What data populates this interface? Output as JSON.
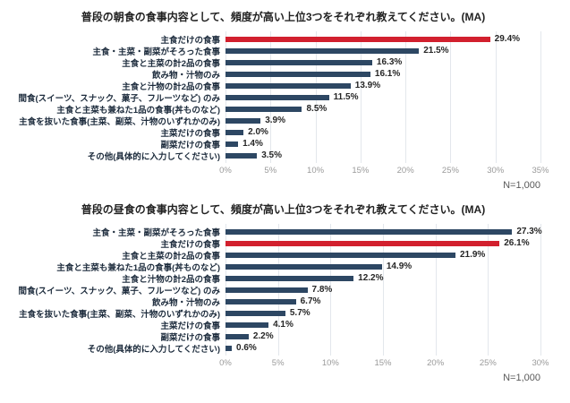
{
  "colors": {
    "bar_default": "#2d4763",
    "bar_highlight": "#d2202e",
    "gridline": "#e3e7ec",
    "value_text": "#262626",
    "label_text": "#1b2a3b",
    "tick_text": "#9a9a9a",
    "sample_text": "#595959"
  },
  "chart_data": [
    {
      "type": "bar",
      "orientation": "horizontal",
      "title": "普段の朝食の食事内容として、頻度が高い上位3つをそれぞれ教えてください。(MA)",
      "xlabel": "",
      "ylabel": "",
      "xlim": [
        0,
        35
      ],
      "grid": true,
      "sample_label": "N=1,000",
      "highlight_index": 0,
      "ticks": [
        {
          "label": "0%",
          "value": 0
        },
        {
          "label": "5%",
          "value": 5
        },
        {
          "label": "10%",
          "value": 10
        },
        {
          "label": "15%",
          "value": 15
        },
        {
          "label": "20%",
          "value": 20
        },
        {
          "label": "25%",
          "value": 25
        },
        {
          "label": "30%",
          "value": 30
        },
        {
          "label": "35%",
          "value": 35
        }
      ],
      "categories": [
        "主食だけの食事",
        "主食・主菜・副菜がそろった食事",
        "主食と主菜の計2品の食事",
        "飲み物・汁物のみ",
        "主食と汁物の計2品の食事",
        "間食(スイーツ、スナック、菓子、フルーツなど) のみ",
        "主食と主菜も兼ねた1品の食事(丼ものなど)",
        "主食を抜いた食事(主菜、副菜、汁物のいずれかのみ)",
        "主菜だけの食事",
        "副菜だけの食事",
        "その他(具体的に入力してください)"
      ],
      "values": [
        29.4,
        21.5,
        16.3,
        16.1,
        13.9,
        11.5,
        8.5,
        3.9,
        2.0,
        1.4,
        3.5
      ],
      "value_labels": [
        "29.4%",
        "21.5%",
        "16.3%",
        "16.1%",
        "13.9%",
        "11.5%",
        "8.5%",
        "3.9%",
        "2.0%",
        "1.4%",
        "3.5%"
      ]
    },
    {
      "type": "bar",
      "orientation": "horizontal",
      "title": "普段の昼食の食事内容として、頻度が高い上位3つをそれぞれ教えてください。(MA)",
      "xlabel": "",
      "ylabel": "",
      "xlim": [
        0,
        30
      ],
      "grid": true,
      "sample_label": "N=1,000",
      "highlight_index": 1,
      "ticks": [
        {
          "label": "0%",
          "value": 0
        },
        {
          "label": "5%",
          "value": 5
        },
        {
          "label": "10%",
          "value": 10
        },
        {
          "label": "15%",
          "value": 15
        },
        {
          "label": "20%",
          "value": 20
        },
        {
          "label": "25%",
          "value": 25
        },
        {
          "label": "30%",
          "value": 30
        }
      ],
      "categories": [
        "主食・主菜・副菜がそろった食事",
        "主食だけの食事",
        "主食と主菜の計2品の食事",
        "主食と主菜も兼ねた1品の食事(丼ものなど)",
        "主食と汁物の計2品の食事",
        "間食(スイーツ、スナック、菓子、フルーツなど) のみ",
        "飲み物・汁物のみ",
        "主食を抜いた食事(主菜、副菜、汁物のいずれかのみ)",
        "主菜だけの食事",
        "副菜だけの食事",
        "その他(具体的に入力してください)"
      ],
      "values": [
        27.3,
        26.1,
        21.9,
        14.9,
        12.2,
        7.8,
        6.7,
        5.7,
        4.1,
        2.2,
        0.6
      ],
      "value_labels": [
        "27.3%",
        "26.1%",
        "21.9%",
        "14.9%",
        "12.2%",
        "7.8%",
        "6.7%",
        "5.7%",
        "4.1%",
        "2.2%",
        "0.6%"
      ]
    }
  ]
}
